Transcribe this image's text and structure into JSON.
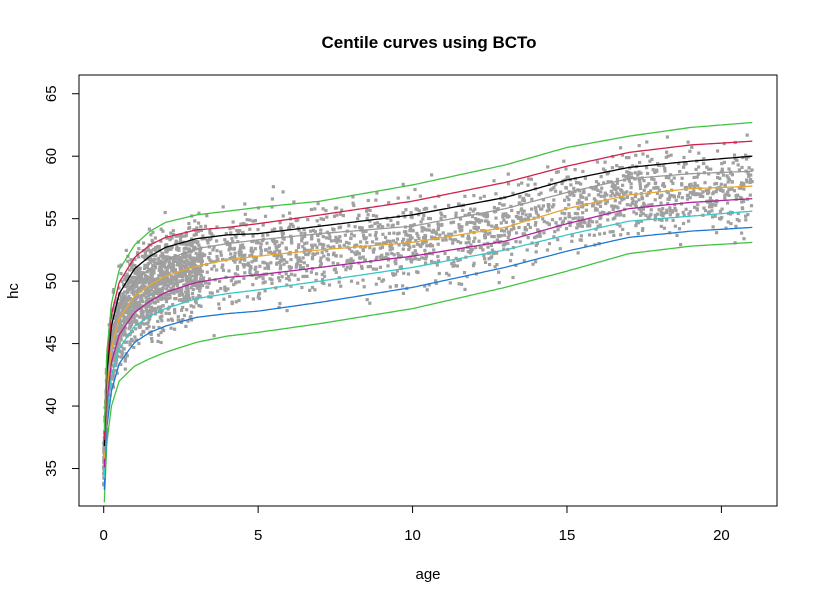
{
  "chart_data": {
    "type": "scatter",
    "title": "Centile curves using BCTo",
    "xlabel": "age",
    "ylabel": "hc",
    "xlim": [
      -0.8,
      21.8
    ],
    "ylim": [
      32,
      66.5
    ],
    "xticks": [
      0,
      5,
      10,
      15,
      20
    ],
    "yticks": [
      35,
      40,
      45,
      50,
      55,
      60,
      65
    ],
    "points_color": "#a0a0a0",
    "centile_curves": [
      {
        "name": "c1",
        "color": "#44c244",
        "x": [
          0.02,
          0.1,
          0.25,
          0.5,
          1,
          1.5,
          2,
          3,
          4,
          5,
          7,
          10,
          13,
          15,
          17,
          19,
          21
        ],
        "y": [
          32.3,
          37,
          40,
          42,
          43.2,
          43.8,
          44.3,
          45.1,
          45.6,
          45.9,
          46.6,
          47.8,
          49.5,
          50.8,
          52.2,
          52.8,
          53.1
        ]
      },
      {
        "name": "c3",
        "color": "#1f77d4",
        "x": [
          0.02,
          0.1,
          0.25,
          0.5,
          1,
          1.5,
          2,
          3,
          4,
          5,
          7,
          10,
          13,
          15,
          17,
          19,
          21
        ],
        "y": [
          33.3,
          38.3,
          41.2,
          43.4,
          45.1,
          45.9,
          46.4,
          47.1,
          47.4,
          47.6,
          48.3,
          49.5,
          51.1,
          52.4,
          53.5,
          54,
          54.3
        ]
      },
      {
        "name": "c10",
        "color": "#38c6c6",
        "x": [
          0.02,
          0.1,
          0.25,
          0.5,
          1,
          1.5,
          2,
          3,
          4,
          5,
          7,
          10,
          13,
          15,
          17,
          19,
          21
        ],
        "y": [
          34.2,
          39.2,
          42.4,
          44.6,
          46.4,
          47.2,
          47.8,
          48.6,
          49,
          49.3,
          50,
          51.1,
          52.5,
          53.7,
          54.8,
          55.2,
          55.6
        ]
      },
      {
        "name": "c25",
        "color": "#b0229b",
        "x": [
          0.02,
          0.1,
          0.25,
          0.5,
          1,
          1.5,
          2,
          3,
          4,
          5,
          7,
          10,
          13,
          15,
          17,
          19,
          21
        ],
        "y": [
          35.1,
          40.2,
          43.5,
          45.7,
          47.5,
          48.4,
          49.1,
          49.9,
          50.3,
          50.5,
          51.1,
          52,
          53.2,
          54.6,
          55.8,
          56.3,
          56.6
        ]
      },
      {
        "name": "c50",
        "color": "#e8a72c",
        "x": [
          0.02,
          0.1,
          0.25,
          0.5,
          1,
          1.5,
          2,
          3,
          4,
          5,
          7,
          10,
          13,
          15,
          17,
          19,
          21
        ],
        "y": [
          35.8,
          41.2,
          44.6,
          47,
          48.8,
          49.7,
          50.4,
          51.2,
          51.7,
          52,
          52.5,
          53.1,
          54.3,
          55.8,
          56.9,
          57.4,
          57.6
        ]
      },
      {
        "name": "c75",
        "color": "#999999",
        "x": [
          0.02,
          0.1,
          0.25,
          0.5,
          1,
          1.5,
          2,
          3,
          4,
          5,
          7,
          10,
          13,
          15,
          17,
          19,
          21
        ],
        "y": [
          36.3,
          42,
          45.6,
          48,
          50,
          51,
          51.7,
          52.6,
          53,
          53.3,
          53.8,
          54.4,
          55.8,
          57.1,
          58.2,
          58.6,
          58.8
        ]
      },
      {
        "name": "c90",
        "color": "#000000",
        "x": [
          0.02,
          0.1,
          0.25,
          0.5,
          1,
          1.5,
          2,
          3,
          4,
          5,
          7,
          10,
          13,
          15,
          17,
          19,
          21
        ],
        "y": [
          36.8,
          42.6,
          46.4,
          49,
          51,
          52,
          52.7,
          53.4,
          53.7,
          53.8,
          54.4,
          55.3,
          56.7,
          58.1,
          59.1,
          59.6,
          60
        ]
      },
      {
        "name": "c97",
        "color": "#d0214c",
        "x": [
          0.02,
          0.1,
          0.25,
          0.5,
          1,
          1.5,
          2,
          3,
          4,
          5,
          7,
          10,
          13,
          15,
          17,
          19,
          21
        ],
        "y": [
          37.3,
          43.4,
          47.3,
          49.9,
          51.9,
          52.9,
          53.5,
          54.1,
          54.3,
          54.6,
          55.3,
          56.4,
          57.9,
          59.2,
          60.3,
          60.9,
          61.2
        ]
      },
      {
        "name": "c99",
        "color": "#44c244",
        "x": [
          0.02,
          0.1,
          0.25,
          0.5,
          1,
          1.5,
          2,
          3,
          4,
          5,
          7,
          10,
          13,
          15,
          17,
          19,
          21
        ],
        "y": [
          38,
          44.3,
          48.2,
          50.9,
          52.9,
          54,
          54.7,
          55.3,
          55.6,
          55.9,
          56.4,
          57.7,
          59.3,
          60.7,
          61.6,
          62.3,
          62.7
        ]
      }
    ]
  }
}
